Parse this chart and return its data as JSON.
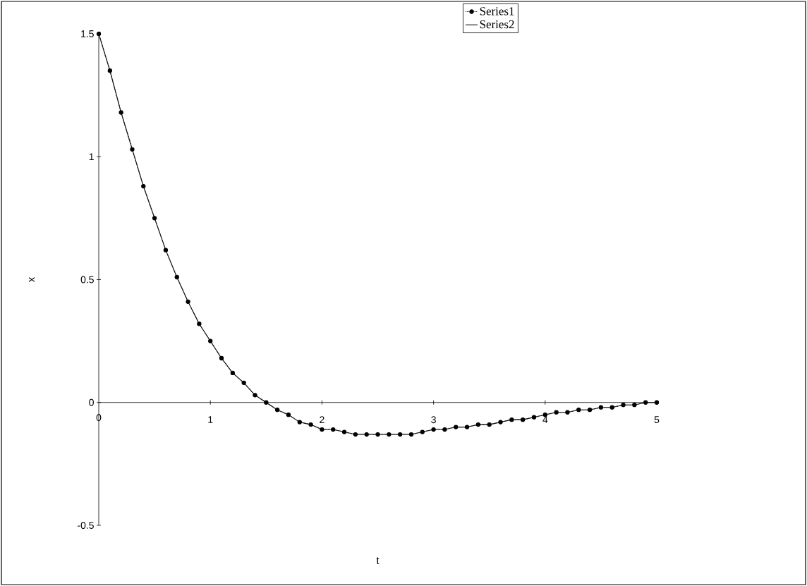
{
  "chart_data": {
    "type": "line",
    "xlabel": "t",
    "ylabel": "x",
    "x": [
      0,
      0.1,
      0.2,
      0.3,
      0.4,
      0.5,
      0.6,
      0.7,
      0.8,
      0.9,
      1,
      1.1,
      1.2,
      1.3,
      1.4,
      1.5,
      1.6,
      1.7,
      1.8,
      1.9,
      2,
      2.1,
      2.2,
      2.3,
      2.4,
      2.5,
      2.6,
      2.7,
      2.8,
      2.9,
      3,
      3.1,
      3.2,
      3.3,
      3.4,
      3.5,
      3.6,
      3.7,
      3.8,
      3.9,
      4,
      4.1,
      4.2,
      4.3,
      4.4,
      4.5,
      4.6,
      4.7,
      4.8,
      4.9,
      5
    ],
    "series": [
      {
        "name": "Series1",
        "color": "#000000",
        "line_style": "dotted",
        "marker": "circle",
        "values": [
          1.5,
          1.35,
          1.18,
          1.03,
          0.88,
          0.75,
          0.62,
          0.51,
          0.41,
          0.32,
          0.25,
          0.18,
          0.12,
          0.08,
          0.03,
          0,
          -0.03,
          -0.05,
          -0.08,
          -0.09,
          -0.11,
          -0.11,
          -0.12,
          -0.13,
          -0.13,
          -0.13,
          -0.13,
          -0.13,
          -0.13,
          -0.12,
          -0.11,
          -0.11,
          -0.1,
          -0.1,
          -0.09,
          -0.09,
          -0.08,
          -0.07,
          -0.07,
          -0.06,
          -0.05,
          -0.04,
          -0.04,
          -0.03,
          -0.03,
          -0.02,
          -0.02,
          -0.01,
          -0.01,
          0,
          0
        ]
      },
      {
        "name": "Series2",
        "color": "#161616",
        "line_style": "solid",
        "marker": "none",
        "values": [
          1.5,
          1.35,
          1.18,
          1.03,
          0.88,
          0.75,
          0.62,
          0.51,
          0.41,
          0.32,
          0.25,
          0.18,
          0.12,
          0.08,
          0.03,
          0,
          -0.03,
          -0.05,
          -0.08,
          -0.09,
          -0.11,
          -0.11,
          -0.12,
          -0.13,
          -0.13,
          -0.13,
          -0.13,
          -0.13,
          -0.13,
          -0.12,
          -0.11,
          -0.11,
          -0.1,
          -0.1,
          -0.09,
          -0.09,
          -0.08,
          -0.07,
          -0.07,
          -0.06,
          -0.05,
          -0.04,
          -0.04,
          -0.03,
          -0.03,
          -0.02,
          -0.02,
          -0.01,
          -0.01,
          0,
          0
        ]
      }
    ],
    "xlim": [
      0,
      5
    ],
    "ylim": [
      -0.5,
      1.5
    ],
    "xticks": [
      0,
      1,
      2,
      3,
      4,
      5
    ],
    "yticks": [
      -0.5,
      0,
      0.5,
      1,
      1.5
    ],
    "grid": false,
    "legend": "top right"
  }
}
